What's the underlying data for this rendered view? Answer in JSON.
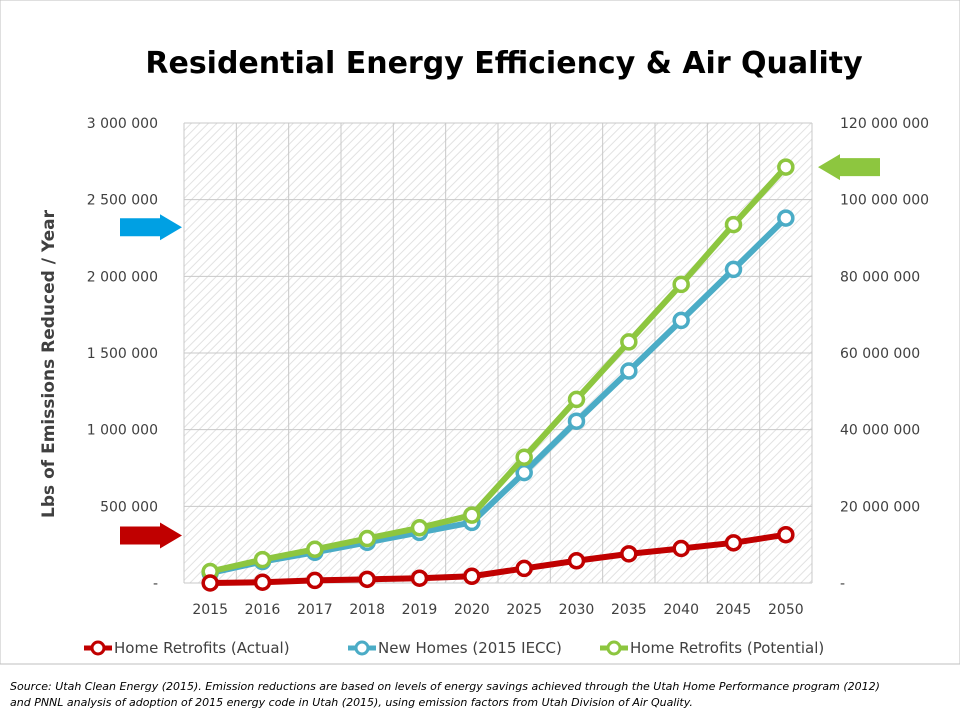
{
  "chart_data": {
    "type": "line",
    "title": "Residential Energy Efficiency & Air Quality",
    "ylabel": "Lbs of Emissions Reduced / Year",
    "categories": [
      "2015",
      "2016",
      "2017",
      "2018",
      "2019",
      "2020",
      "2025",
      "2030",
      "2035",
      "2040",
      "2045",
      "2050"
    ],
    "ylim_left": [
      0,
      3000000
    ],
    "ylim_right": [
      0,
      120000000
    ],
    "yticks_left": [
      "-",
      "500 000",
      "1 000 000",
      "1 500 000",
      "2 000 000",
      "2 500 000",
      "3 000 000"
    ],
    "yticks_right": [
      "-",
      "20 000 000",
      "40 000 000",
      "60 000 000",
      "80 000 000",
      "100 000 000",
      "120 000 000"
    ],
    "grid": true,
    "legend_position": "bottom",
    "series": [
      {
        "name": "Home Retrofits (Actual)",
        "axis": "left",
        "color": "#C00000",
        "values": [
          0,
          5000,
          17000,
          24000,
          31000,
          44000,
          95000,
          145000,
          190000,
          225000,
          262000,
          315000
        ]
      },
      {
        "name": "New Homes (2015 IECC)",
        "axis": "right",
        "color": "#4BACC6",
        "values": [
          2600000,
          5600000,
          8000000,
          10600000,
          13200000,
          15800000,
          28800000,
          42200000,
          55300000,
          68500000,
          81800000,
          95200000
        ]
      },
      {
        "name": "Home Retrofits (Potential)",
        "axis": "right",
        "color": "#8DC63F",
        "values": [
          3000000,
          6100000,
          8800000,
          11600000,
          14400000,
          17700000,
          32800000,
          47900000,
          62900000,
          77900000,
          93500000,
          108500000
        ]
      }
    ],
    "annotations": [
      {
        "kind": "arrow",
        "direction": "right",
        "color": "#00A0E3",
        "target_axis": "left",
        "target_value": 2320000
      },
      {
        "kind": "arrow",
        "direction": "right",
        "color": "#C00000",
        "target_axis": "left",
        "target_value": 310000
      },
      {
        "kind": "arrow",
        "direction": "left",
        "color": "#8DC63F",
        "target_axis": "right",
        "target_value": 108500000
      }
    ]
  },
  "source_note": [
    "Source: Utah Clean Energy (2015).  Emission reductions are based on levels of energy savings achieved through the Utah Home Performance program (2012)",
    "and PNNL analysis of adoption of 2015 energy code in Utah (2015), using emission factors from Utah Division of Air Quality."
  ]
}
